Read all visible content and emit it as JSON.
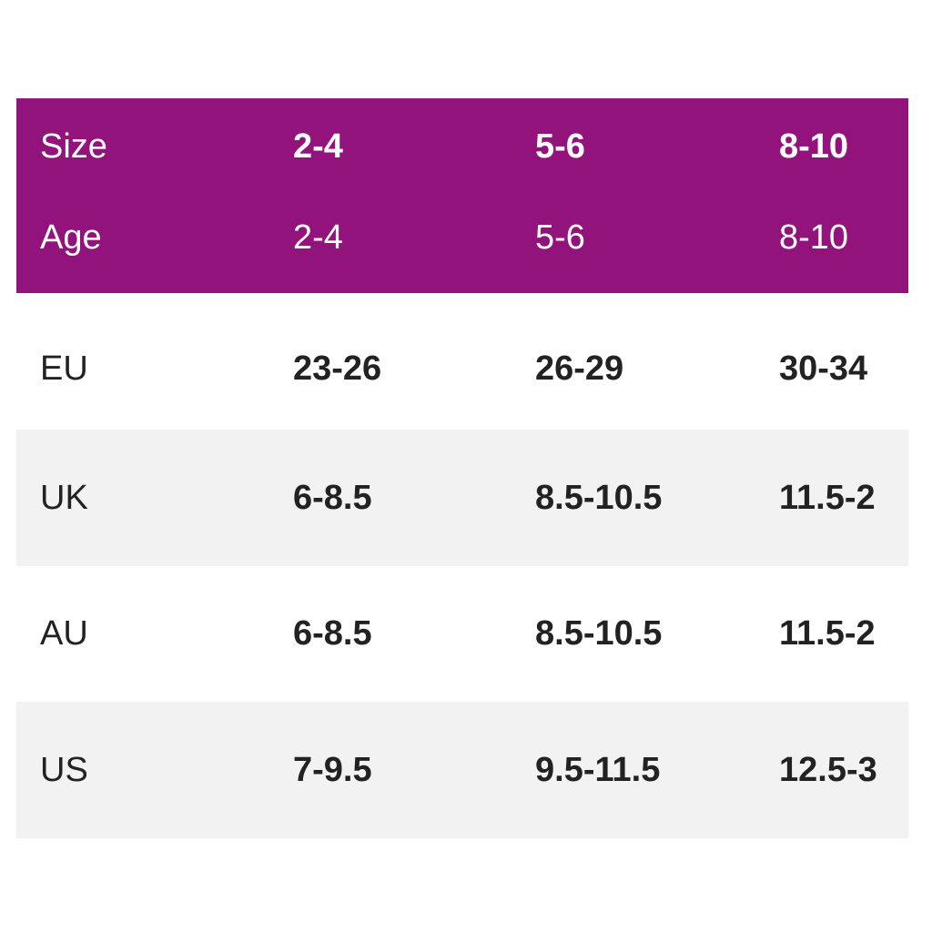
{
  "table": {
    "header_rows": [
      [
        "Size",
        "2-4",
        "5-6",
        "8-10"
      ],
      [
        "Age",
        "2-4",
        "5-6",
        "8-10"
      ]
    ],
    "rows": [
      [
        "EU",
        "23-26",
        "26-29",
        "30-34"
      ],
      [
        "UK",
        "6-8.5",
        "8.5-10.5",
        "11.5-2"
      ],
      [
        "AU",
        "6-8.5",
        "8.5-10.5",
        "11.5-2"
      ],
      [
        "US",
        "7-9.5",
        "9.5-11.5",
        "12.5-3"
      ]
    ]
  }
}
